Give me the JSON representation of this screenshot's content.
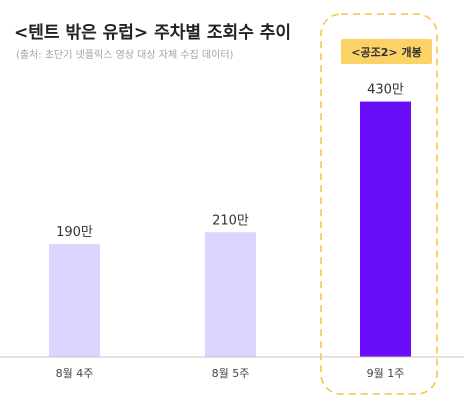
{
  "chart_data": {
    "type": "bar",
    "title": "<텐트 밖은 유럽> 주차별 조회수 추이",
    "subtitle": "(출처: 초단기 넷플릭스 영상 대상 자체 수집 데이터)",
    "categories": [
      "8월 4주",
      "8월 5주",
      "9월 1주"
    ],
    "values": [
      190,
      210,
      430
    ],
    "value_labels": [
      "190만",
      "210만",
      "430만"
    ],
    "unit": "만",
    "ylim": [
      0,
      500
    ],
    "grid": false,
    "highlight": {
      "category_index": 2,
      "badge_text": "<공조2> 개봉",
      "badge_color": "#fbd265",
      "outline_color": "#f8c64a"
    },
    "colors": {
      "bar": "#dcd3ff",
      "bar_highlight": "#6a0dfa",
      "baseline": "#c7c7c7"
    }
  }
}
